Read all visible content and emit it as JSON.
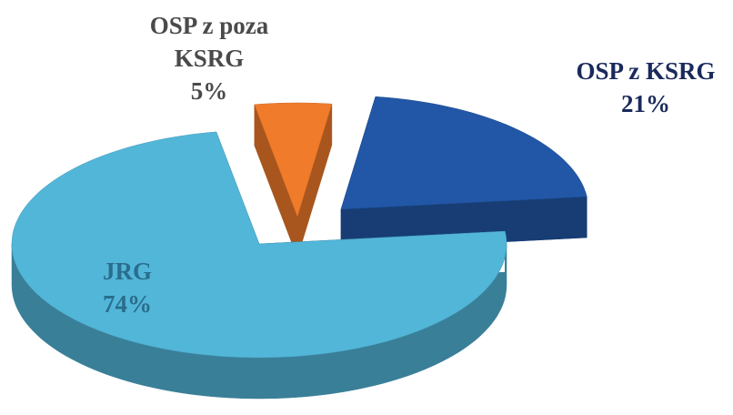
{
  "chart_data": {
    "type": "pie",
    "categories": [
      "JRG",
      "OSP z KSRG",
      "OSP z poza KSRG"
    ],
    "values": [
      74,
      21,
      5
    ],
    "value_labels": [
      "74%",
      "21%",
      "5%"
    ],
    "colors": [
      "#52b6d9",
      "#2157a6",
      "#f07b2b"
    ]
  }
}
